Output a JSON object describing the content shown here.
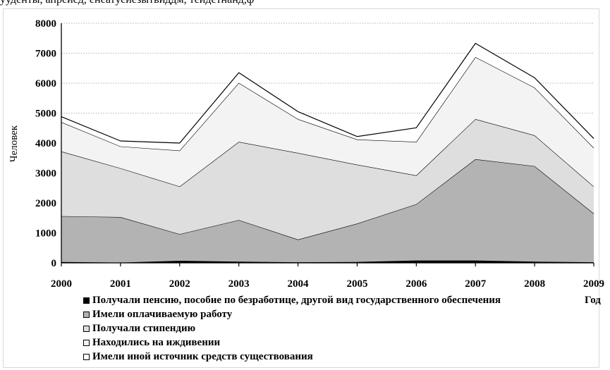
{
  "caption": "ууденты, апреисд, енеатуеиезытвиддм, теидетнанд,ф",
  "chart_data": {
    "type": "area",
    "stacked": true,
    "x": [
      2000,
      2001,
      2002,
      2003,
      2004,
      2005,
      2006,
      2007,
      2008,
      2009
    ],
    "x_tick_labels": [
      "2000",
      "2001",
      "2002",
      "2003",
      "2004",
      "2005",
      "2006",
      "2007",
      "2008",
      "2009"
    ],
    "xlabel": "Год",
    "ylabel": "Человек",
    "ylim": [
      0,
      8000
    ],
    "y_ticks": [
      0,
      1000,
      2000,
      3000,
      4000,
      5000,
      6000,
      7000,
      8000
    ],
    "y_tick_labels": [
      "0",
      "1000",
      "2000",
      "3000",
      "4000",
      "5000",
      "6000",
      "7000",
      "8000"
    ],
    "grid": "horizontal dashed",
    "legend_position": "bottom",
    "series": [
      {
        "name": "Получали пенсию, пособие по безработице, другой вид государственного обеспечения",
        "color": "#000000",
        "values": [
          30,
          10,
          70,
          40,
          20,
          30,
          80,
          80,
          40,
          20
        ]
      },
      {
        "name": "Имели оплачиваемую работу",
        "color": "#b3b3b3",
        "values": [
          1530,
          1520,
          890,
          1390,
          760,
          1280,
          1880,
          3380,
          3190,
          1630
        ]
      },
      {
        "name": "Получали стипендию",
        "color": "#dedede",
        "values": [
          2160,
          1630,
          1590,
          2610,
          2890,
          1970,
          960,
          1340,
          1030,
          900
        ]
      },
      {
        "name": "Находились на иждивении",
        "color": "#f3f3f3",
        "values": [
          980,
          730,
          1200,
          1970,
          1130,
          840,
          1120,
          2070,
          1590,
          1290
        ]
      },
      {
        "name": "Имели иной источник средств существования",
        "color": "#ffffff",
        "values": [
          180,
          180,
          250,
          340,
          250,
          100,
          470,
          460,
          330,
          310
        ]
      }
    ]
  }
}
